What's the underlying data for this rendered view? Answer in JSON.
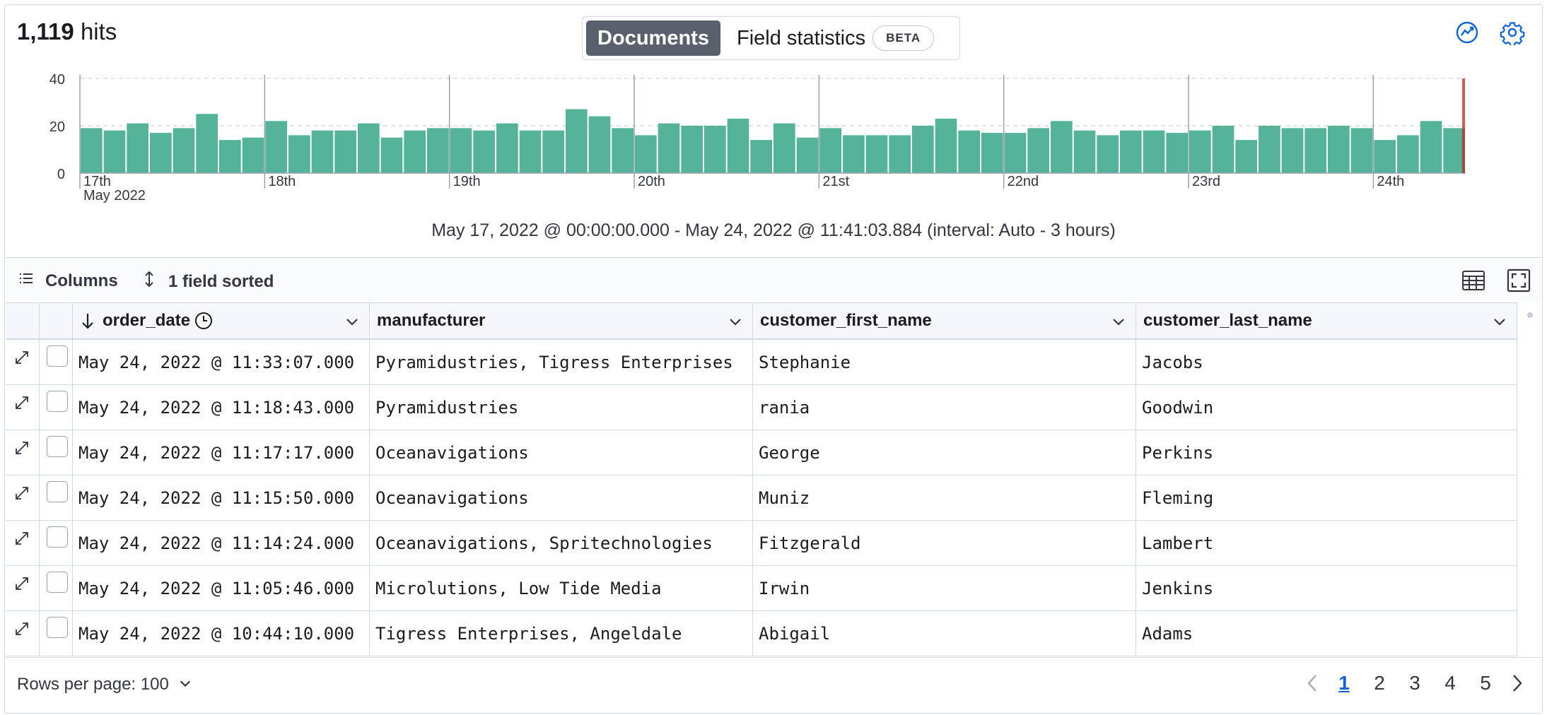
{
  "header": {
    "hits_count": "1,119",
    "hits_label": "hits",
    "tabs": [
      {
        "label": "Documents",
        "selected": true
      },
      {
        "label": "Field statistics",
        "badge": "BETA",
        "selected": false
      }
    ],
    "icons": [
      "visualize-icon",
      "gear-icon"
    ],
    "accent_color": "#0b64dd"
  },
  "chart_data": {
    "type": "bar",
    "color": "#54b399",
    "ylim": [
      0,
      40
    ],
    "y_ticks": [
      "0",
      "20",
      "40"
    ],
    "x_ticks": [
      "17th",
      "18th",
      "19th",
      "20th",
      "21st",
      "22nd",
      "23rd",
      "24th"
    ],
    "x_sublabel": "May 2022",
    "interval_hours": 3,
    "values": [
      19,
      18,
      21,
      17,
      19,
      25,
      14,
      15,
      22,
      16,
      18,
      18,
      21,
      15,
      18,
      19,
      19,
      18,
      21,
      18,
      18,
      27,
      24,
      19,
      16,
      21,
      20,
      20,
      23,
      14,
      21,
      15,
      19,
      16,
      16,
      16,
      20,
      23,
      18,
      17,
      17,
      19,
      22,
      18,
      16,
      18,
      18,
      17,
      18,
      20,
      14,
      20,
      19,
      19,
      20,
      19,
      14,
      16,
      22,
      19
    ],
    "current_time_marker": true
  },
  "time_range": "May 17, 2022 @ 00:00:00.000 - May 24, 2022 @ 11:41:03.884 (interval: Auto - 3 hours)",
  "toolbar": {
    "columns_label": "Columns",
    "sort_label": "1 field sorted"
  },
  "grid": {
    "columns": [
      "order_date",
      "manufacturer",
      "customer_first_name",
      "customer_last_name"
    ],
    "rows": [
      [
        "May 24, 2022 @ 11:33:07.000",
        "Pyramidustries, Tigress Enterprises",
        "Stephanie",
        "Jacobs"
      ],
      [
        "May 24, 2022 @ 11:18:43.000",
        "Pyramidustries",
        "rania",
        "Goodwin"
      ],
      [
        "May 24, 2022 @ 11:17:17.000",
        "Oceanavigations",
        "George",
        "Perkins"
      ],
      [
        "May 24, 2022 @ 11:15:50.000",
        "Oceanavigations",
        "Muniz",
        "Fleming"
      ],
      [
        "May 24, 2022 @ 11:14:24.000",
        "Oceanavigations, Spritechnologies",
        "Fitzgerald",
        "Lambert"
      ],
      [
        "May 24, 2022 @ 11:05:46.000",
        "Microlutions, Low Tide Media",
        "Irwin",
        "Jenkins"
      ],
      [
        "May 24, 2022 @ 10:44:10.000",
        "Tigress Enterprises, Angeldale",
        "Abigail",
        "Adams"
      ]
    ]
  },
  "footer": {
    "rows_per_page": "Rows per page: 100",
    "pages": [
      "1",
      "2",
      "3",
      "4",
      "5"
    ],
    "active_page": "1"
  }
}
